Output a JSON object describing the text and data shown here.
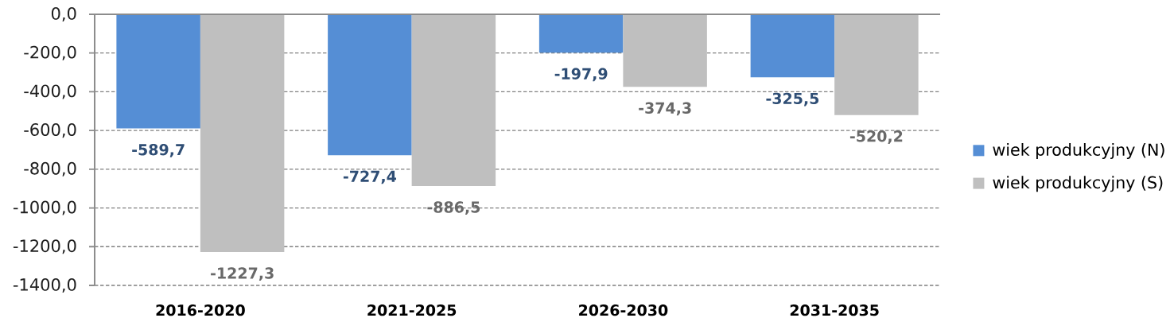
{
  "chart_data": {
    "type": "bar",
    "categories": [
      "2016-2020",
      "2021-2025",
      "2026-2030",
      "2031-2035"
    ],
    "series": [
      {
        "name": "wiek produkcyjny (N)",
        "color": "#558ed5",
        "values": [
          -589.7,
          -727.4,
          -197.9,
          -325.5
        ],
        "value_labels": [
          "-589,7",
          "-727,4",
          "-197,9",
          "-325,5"
        ]
      },
      {
        "name": "wiek produkcyjny (S)",
        "color": "#bfbfbf",
        "values": [
          -1227.3,
          -886.5,
          -374.3,
          -520.2
        ],
        "value_labels": [
          "-1227,3",
          "-886,5",
          "-374,3",
          "-520,2"
        ]
      }
    ],
    "ylim": [
      -1400,
      0
    ],
    "yticks": [
      {
        "value": -1400,
        "label": "-1400,0"
      },
      {
        "value": -1200,
        "label": "-1200,0"
      },
      {
        "value": -1000,
        "label": "-1000,0"
      },
      {
        "value": -800,
        "label": "-800,0"
      },
      {
        "value": -600,
        "label": "-600,0"
      },
      {
        "value": -400,
        "label": "-400,0"
      },
      {
        "value": -200,
        "label": "-200,0"
      },
      {
        "value": 0,
        "label": "0,0"
      }
    ],
    "grid": "y",
    "legend": "right"
  }
}
